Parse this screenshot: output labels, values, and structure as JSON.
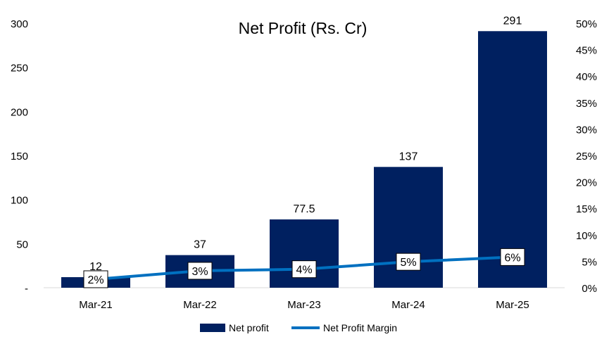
{
  "chart_data": {
    "type": "bar",
    "title": "Net Profit (Rs. Cr)",
    "categories": [
      "Mar-21",
      "Mar-22",
      "Mar-23",
      "Mar-24",
      "Mar-25"
    ],
    "series": [
      {
        "name": "Net profit",
        "type": "bar",
        "axis": "left",
        "values": [
          12,
          37,
          77.5,
          137,
          291
        ],
        "labels": [
          "12",
          "37",
          "77.5",
          "137",
          "291"
        ],
        "color": "#002060"
      },
      {
        "name": "Net Profit Margin",
        "type": "line",
        "axis": "right",
        "values": [
          0.02,
          0.03,
          0.04,
          0.05,
          0.06
        ],
        "value_labels": [
          "2%",
          "3%",
          "4%",
          "5%",
          "6%"
        ],
        "display_values": [
          0.016,
          0.032,
          0.035,
          0.049,
          0.058
        ],
        "color": "#0070C0"
      }
    ],
    "y_left": {
      "ylim": [
        0,
        300
      ],
      "ticks": [
        0,
        50,
        100,
        150,
        200,
        250,
        300
      ],
      "tick_labels": [
        "-",
        "50",
        "100",
        "150",
        "200",
        "250",
        "300"
      ]
    },
    "y_right": {
      "ylim": [
        0,
        0.5
      ],
      "ticks": [
        0,
        0.05,
        0.1,
        0.15,
        0.2,
        0.25,
        0.3,
        0.35,
        0.4,
        0.45,
        0.5
      ],
      "tick_labels": [
        "0%",
        "5%",
        "10%",
        "15%",
        "20%",
        "25%",
        "30%",
        "35%",
        "40%",
        "45%",
        "50%"
      ]
    },
    "xlabel": "",
    "ylabel": "",
    "grid": false,
    "legend": "bottom"
  }
}
